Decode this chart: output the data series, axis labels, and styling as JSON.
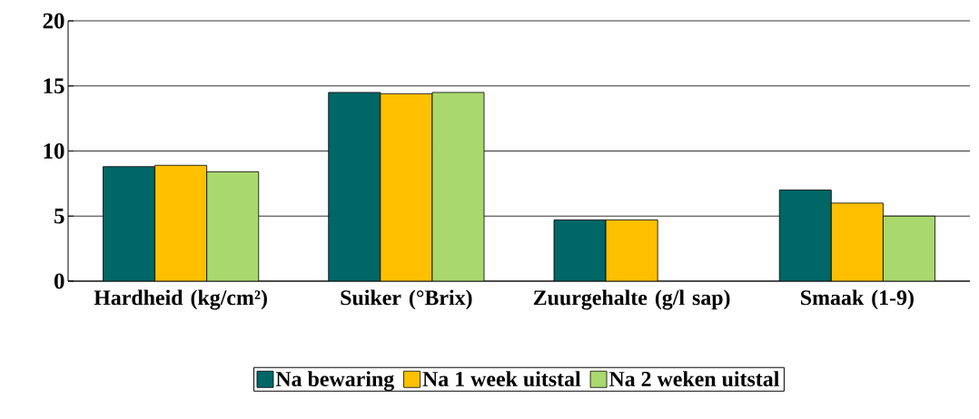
{
  "chart_data": {
    "type": "bar",
    "categories": [
      "Hardheid (kg/cm²)",
      "Suiker (°Brix)",
      "Zuurgehalte (g/l sap)",
      "Smaak (1-9)"
    ],
    "series": [
      {
        "name": "Na bewaring",
        "color": "#006666",
        "values": [
          8.8,
          14.5,
          4.7,
          7
        ]
      },
      {
        "name": "Na 1 week uitstal",
        "color": "#ffc000",
        "values": [
          8.9,
          14.4,
          4.7,
          6
        ]
      },
      {
        "name": "Na 2 weken uitstal",
        "color": "#a9d86e",
        "values": [
          8.4,
          14.5,
          null,
          5
        ]
      }
    ],
    "ylim": [
      0,
      20
    ],
    "yticks": [
      0,
      5,
      10,
      15,
      20
    ],
    "grid": "y",
    "legend": "bottom"
  }
}
